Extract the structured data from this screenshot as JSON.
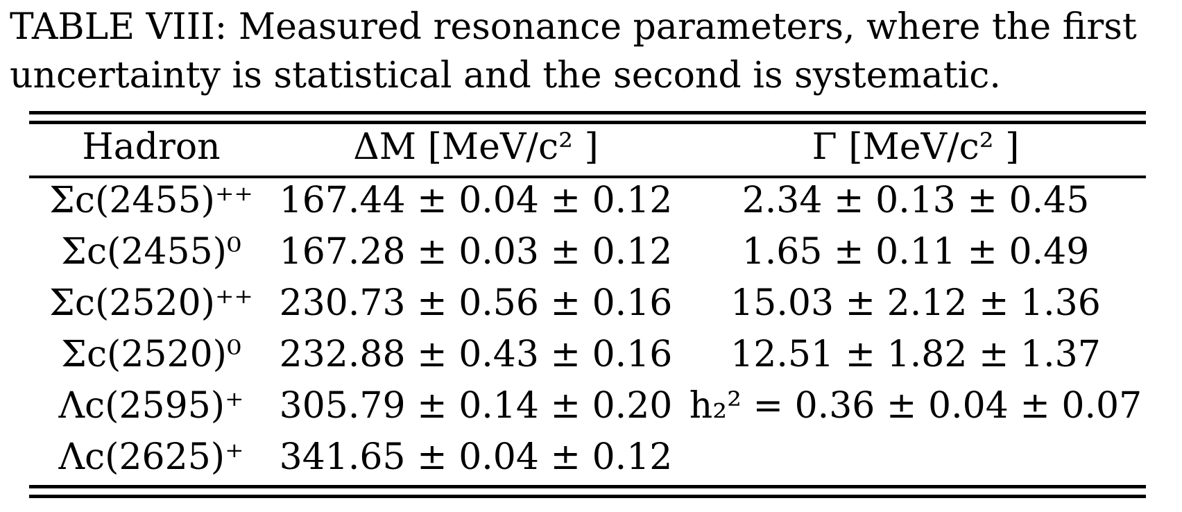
{
  "caption": {
    "line1": "TABLE VIII: Measured resonance parameters, where the first",
    "line2": "uncertainty is statistical and the second is systematic."
  },
  "table": {
    "headers": [
      "Hadron",
      "ΔM  [MeV/c² ]",
      "Γ  [MeV/c² ]"
    ],
    "rows": [
      [
        "Σc(2455)⁺⁺",
        "167.44 ± 0.04 ± 0.12",
        "2.34 ± 0.13 ± 0.45"
      ],
      [
        "Σc(2455)⁰",
        "167.28 ± 0.03 ± 0.12",
        "1.65 ± 0.11 ± 0.49"
      ],
      [
        "Σc(2520)⁺⁺",
        "230.73 ± 0.56 ± 0.16",
        "15.03 ± 2.12 ± 1.36"
      ],
      [
        "Σc(2520)⁰",
        "232.88 ± 0.43 ± 0.16",
        "12.51 ± 1.82 ± 1.37"
      ],
      [
        "Λc(2595)⁺",
        "305.79 ± 0.14 ± 0.20",
        "h₂² = 0.36 ± 0.04 ± 0.07"
      ],
      [
        "Λc(2625)⁺",
        "341.65 ± 0.04 ± 0.12",
        ""
      ]
    ]
  }
}
